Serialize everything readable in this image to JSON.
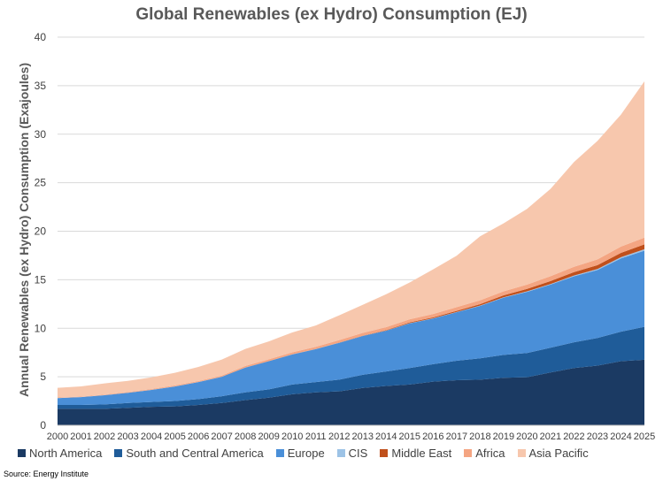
{
  "title": "Global Renewables (ex Hydro) Consumption (EJ)",
  "source": "Source: Energy Institute",
  "chart_data": {
    "type": "area",
    "stacked": true,
    "title": "Global Renewables (ex Hydro) Consumption (EJ)",
    "xlabel": "",
    "ylabel": "Annual Renewables (ex Hydro) Consumption (Exajoules)",
    "ylim": [
      0,
      40
    ],
    "yticks": [
      "0",
      "5",
      "10",
      "15",
      "20",
      "25",
      "30",
      "35",
      "40"
    ],
    "grid": true,
    "legend_position": "bottom",
    "x": [
      "2000",
      "2001",
      "2002",
      "2003",
      "2004",
      "2005",
      "2006",
      "2007",
      "2008",
      "2009",
      "2010",
      "2011",
      "2012",
      "2013",
      "2014",
      "2015",
      "2016",
      "2017",
      "2018",
      "2019",
      "2020",
      "2021",
      "2022",
      "2023",
      "2024",
      "2025"
    ],
    "series": [
      {
        "name": "North America",
        "color": "#1b3a63",
        "values": [
          1.7,
          1.7,
          1.7,
          1.8,
          1.9,
          1.95,
          2.1,
          2.3,
          2.6,
          2.85,
          3.2,
          3.4,
          3.5,
          3.85,
          4.05,
          4.2,
          4.5,
          4.65,
          4.7,
          4.9,
          4.95,
          5.45,
          5.9,
          6.15,
          6.6,
          6.75
        ]
      },
      {
        "name": "South and Central America",
        "color": "#1f5c99",
        "values": [
          0.4,
          0.4,
          0.45,
          0.5,
          0.5,
          0.55,
          0.6,
          0.7,
          0.8,
          0.85,
          1.0,
          1.05,
          1.2,
          1.35,
          1.5,
          1.7,
          1.8,
          2.0,
          2.2,
          2.35,
          2.5,
          2.55,
          2.65,
          2.85,
          3.05,
          3.4
        ]
      },
      {
        "name": "Europe",
        "color": "#4a8fd8",
        "values": [
          0.7,
          0.8,
          0.95,
          1.05,
          1.25,
          1.5,
          1.75,
          2.0,
          2.55,
          2.9,
          3.1,
          3.4,
          3.8,
          4.0,
          4.2,
          4.6,
          4.7,
          5.0,
          5.4,
          5.9,
          6.3,
          6.5,
          6.8,
          7.0,
          7.55,
          7.85
        ]
      },
      {
        "name": "CIS",
        "color": "#9dc3e6",
        "values": [
          0.01,
          0.01,
          0.01,
          0.01,
          0.01,
          0.01,
          0.01,
          0.01,
          0.01,
          0.01,
          0.01,
          0.01,
          0.01,
          0.01,
          0.01,
          0.02,
          0.02,
          0.02,
          0.03,
          0.04,
          0.05,
          0.06,
          0.08,
          0.1,
          0.12,
          0.14
        ]
      },
      {
        "name": "Middle East",
        "color": "#c0501c",
        "values": [
          0.0,
          0.0,
          0.0,
          0.0,
          0.0,
          0.0,
          0.0,
          0.0,
          0.01,
          0.01,
          0.01,
          0.01,
          0.02,
          0.03,
          0.05,
          0.08,
          0.1,
          0.12,
          0.15,
          0.2,
          0.25,
          0.3,
          0.35,
          0.4,
          0.45,
          0.5
        ]
      },
      {
        "name": "Africa",
        "color": "#f4a582",
        "values": [
          0.05,
          0.05,
          0.06,
          0.07,
          0.08,
          0.1,
          0.1,
          0.12,
          0.15,
          0.18,
          0.2,
          0.22,
          0.25,
          0.28,
          0.3,
          0.32,
          0.35,
          0.38,
          0.4,
          0.42,
          0.45,
          0.5,
          0.55,
          0.6,
          0.65,
          0.7
        ]
      },
      {
        "name": "Asia Pacific",
        "color": "#f7c7ad",
        "values": [
          1.0,
          1.05,
          1.15,
          1.15,
          1.2,
          1.3,
          1.45,
          1.65,
          1.75,
          1.85,
          2.05,
          2.2,
          2.55,
          2.9,
          3.4,
          3.8,
          4.6,
          5.3,
          6.6,
          7.0,
          7.8,
          9.0,
          10.8,
          12.2,
          13.6,
          16.1
        ]
      }
    ]
  }
}
